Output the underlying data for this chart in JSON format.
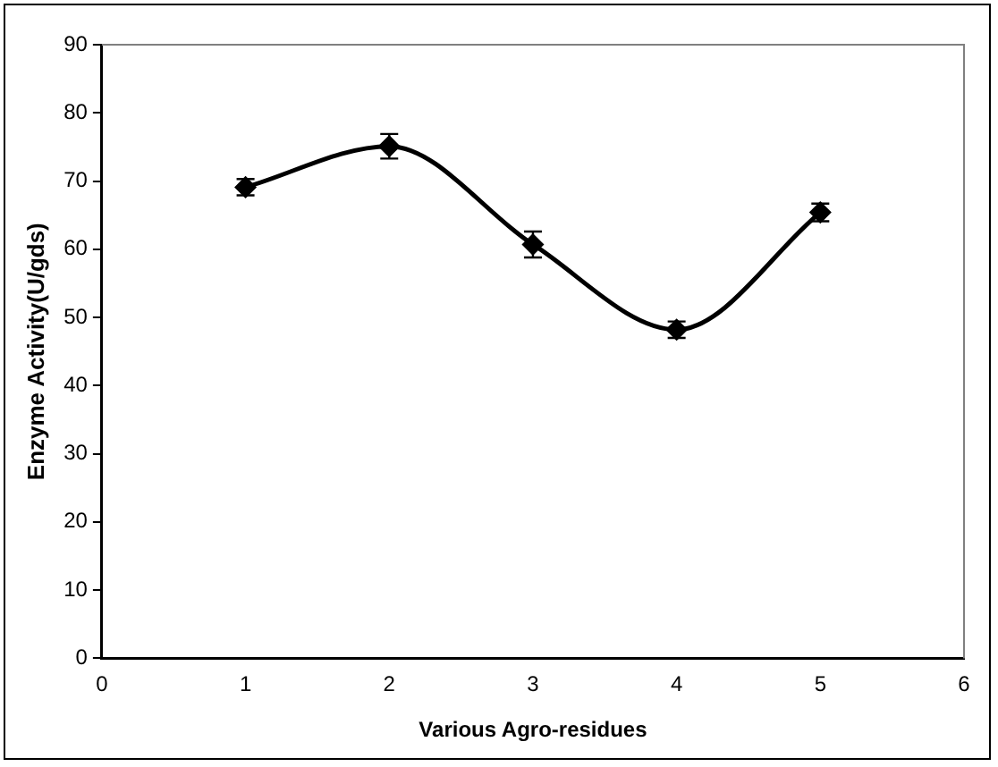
{
  "chart_data": {
    "type": "line",
    "xlabel": "Various Agro-residues",
    "ylabel": "Enzyme Activity(U/gds)",
    "x": [
      1,
      2,
      3,
      4,
      5
    ],
    "series": [
      {
        "color": "#000000",
        "values": [
          69.1,
          75.1,
          60.7,
          48.2,
          65.4
        ],
        "errors": [
          1.2,
          1.8,
          1.9,
          1.2,
          1.3
        ]
      }
    ],
    "xlim": [
      0,
      6
    ],
    "xticks": [
      0,
      1,
      2,
      3,
      4,
      5,
      6
    ],
    "ylim": [
      0,
      90
    ],
    "yticks": [
      0,
      10,
      20,
      30,
      40,
      50,
      60,
      70,
      80,
      90
    ],
    "grid": false,
    "legend": false,
    "marker": "diamond",
    "line_style": "solid"
  }
}
